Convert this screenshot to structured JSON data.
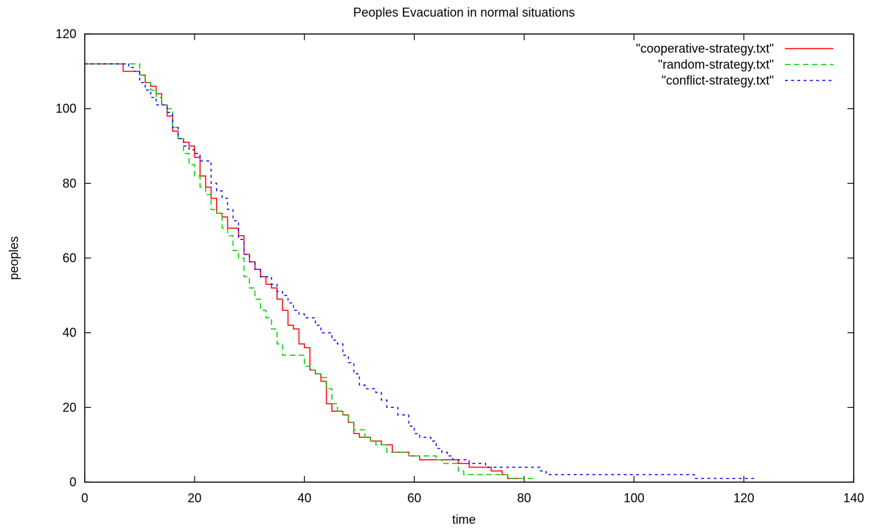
{
  "chart_data": {
    "type": "line",
    "title": "Peoples Evacuation in normal situations",
    "xlabel": "time",
    "ylabel": "peoples",
    "xlim": [
      0,
      140
    ],
    "ylim": [
      0,
      120
    ],
    "xticks": [
      0,
      20,
      40,
      60,
      80,
      100,
      120,
      140
    ],
    "yticks": [
      0,
      20,
      40,
      60,
      80,
      100,
      120
    ],
    "legend_position": "top-right",
    "step": true,
    "series": [
      {
        "name": "\"cooperative-strategy.txt\"",
        "color": "#ff0000",
        "dash": "solid",
        "points": [
          [
            0,
            112
          ],
          [
            6,
            112
          ],
          [
            7,
            110
          ],
          [
            9,
            110
          ],
          [
            10,
            109
          ],
          [
            11,
            107
          ],
          [
            12,
            106
          ],
          [
            13,
            104
          ],
          [
            14,
            101
          ],
          [
            15,
            98
          ],
          [
            16,
            94
          ],
          [
            17,
            92
          ],
          [
            18,
            91
          ],
          [
            19,
            90
          ],
          [
            20,
            87
          ],
          [
            21,
            82
          ],
          [
            22,
            79
          ],
          [
            23,
            76
          ],
          [
            24,
            72
          ],
          [
            25,
            71
          ],
          [
            26,
            68
          ],
          [
            27,
            68
          ],
          [
            28,
            66
          ],
          [
            29,
            61
          ],
          [
            30,
            59
          ],
          [
            31,
            57
          ],
          [
            32,
            55
          ],
          [
            33,
            53
          ],
          [
            34,
            52
          ],
          [
            35,
            49
          ],
          [
            36,
            46
          ],
          [
            37,
            42
          ],
          [
            38,
            41
          ],
          [
            39,
            37
          ],
          [
            40,
            36
          ],
          [
            41,
            30
          ],
          [
            42,
            29
          ],
          [
            43,
            27
          ],
          [
            44,
            21
          ],
          [
            45,
            19
          ],
          [
            46,
            19
          ],
          [
            47,
            18
          ],
          [
            48,
            16
          ],
          [
            49,
            13
          ],
          [
            50,
            12
          ],
          [
            51,
            12
          ],
          [
            52,
            11
          ],
          [
            53,
            11
          ],
          [
            54,
            10
          ],
          [
            55,
            10
          ],
          [
            56,
            8
          ],
          [
            58,
            8
          ],
          [
            59,
            7
          ],
          [
            60,
            7
          ],
          [
            61,
            6
          ],
          [
            67,
            6
          ],
          [
            68,
            5
          ],
          [
            69,
            5
          ],
          [
            70,
            4
          ],
          [
            73,
            4
          ],
          [
            74,
            3
          ],
          [
            75,
            3
          ],
          [
            76,
            2
          ],
          [
            77,
            1
          ],
          [
            79,
            1
          ]
        ]
      },
      {
        "name": "\"random-strategy.txt\"",
        "color": "#00cc00",
        "dash": "dashed",
        "points": [
          [
            0,
            112
          ],
          [
            9,
            112
          ],
          [
            10,
            109
          ],
          [
            11,
            107
          ],
          [
            12,
            105
          ],
          [
            13,
            103
          ],
          [
            14,
            101
          ],
          [
            15,
            100
          ],
          [
            16,
            95
          ],
          [
            17,
            92
          ],
          [
            18,
            88
          ],
          [
            19,
            85
          ],
          [
            20,
            82
          ],
          [
            21,
            79
          ],
          [
            22,
            77
          ],
          [
            23,
            73
          ],
          [
            24,
            72
          ],
          [
            25,
            68
          ],
          [
            26,
            66
          ],
          [
            27,
            62
          ],
          [
            28,
            60
          ],
          [
            29,
            55
          ],
          [
            30,
            52
          ],
          [
            31,
            49
          ],
          [
            32,
            46
          ],
          [
            33,
            44
          ],
          [
            34,
            41
          ],
          [
            35,
            37
          ],
          [
            36,
            34
          ],
          [
            38,
            34
          ],
          [
            39,
            34
          ],
          [
            40,
            31
          ],
          [
            41,
            30
          ],
          [
            42,
            29
          ],
          [
            43,
            28
          ],
          [
            44,
            25
          ],
          [
            45,
            21
          ],
          [
            46,
            19
          ],
          [
            47,
            18
          ],
          [
            48,
            16
          ],
          [
            49,
            14
          ],
          [
            50,
            14
          ],
          [
            51,
            12
          ],
          [
            52,
            11
          ],
          [
            53,
            10
          ],
          [
            54,
            10
          ],
          [
            55,
            8
          ],
          [
            59,
            7
          ],
          [
            64,
            6
          ],
          [
            65,
            5
          ],
          [
            67,
            5
          ],
          [
            68,
            3
          ],
          [
            69,
            2
          ],
          [
            76,
            2
          ],
          [
            77,
            1
          ],
          [
            82,
            1
          ]
        ]
      },
      {
        "name": "\"conflict-strategy.txt\"",
        "color": "#0000ff",
        "dash": "dotted",
        "points": [
          [
            0,
            112
          ],
          [
            7,
            112
          ],
          [
            8,
            111
          ],
          [
            9,
            110
          ],
          [
            10,
            107
          ],
          [
            11,
            105
          ],
          [
            12,
            103
          ],
          [
            13,
            101
          ],
          [
            15,
            99
          ],
          [
            16,
            95
          ],
          [
            17,
            92
          ],
          [
            18,
            90
          ],
          [
            19,
            89
          ],
          [
            20,
            88
          ],
          [
            21,
            86
          ],
          [
            23,
            80
          ],
          [
            24,
            78
          ],
          [
            25,
            76
          ],
          [
            26,
            73
          ],
          [
            27,
            70
          ],
          [
            28,
            65
          ],
          [
            29,
            61
          ],
          [
            30,
            59
          ],
          [
            31,
            57
          ],
          [
            32,
            55
          ],
          [
            34,
            53
          ],
          [
            35,
            51
          ],
          [
            36,
            50
          ],
          [
            37,
            48
          ],
          [
            38,
            46
          ],
          [
            39,
            45
          ],
          [
            40,
            44
          ],
          [
            41,
            44
          ],
          [
            42,
            42
          ],
          [
            43,
            40
          ],
          [
            45,
            38
          ],
          [
            46,
            37
          ],
          [
            47,
            34
          ],
          [
            48,
            32
          ],
          [
            49,
            29
          ],
          [
            50,
            26
          ],
          [
            51,
            25
          ],
          [
            52,
            25
          ],
          [
            53,
            24
          ],
          [
            54,
            22
          ],
          [
            55,
            20
          ],
          [
            56,
            20
          ],
          [
            57,
            18
          ],
          [
            58,
            18
          ],
          [
            59,
            15
          ],
          [
            60,
            13
          ],
          [
            61,
            12
          ],
          [
            62,
            12
          ],
          [
            63,
            11
          ],
          [
            64,
            9
          ],
          [
            65,
            8
          ],
          [
            66,
            7
          ],
          [
            67,
            6
          ],
          [
            68,
            6
          ],
          [
            69,
            6
          ],
          [
            70,
            5
          ],
          [
            72,
            5
          ],
          [
            73,
            4
          ],
          [
            77,
            4
          ],
          [
            82,
            4
          ],
          [
            83,
            3
          ],
          [
            84,
            2
          ],
          [
            110,
            2
          ],
          [
            111,
            1
          ],
          [
            118,
            1
          ],
          [
            122,
            1
          ]
        ]
      }
    ]
  }
}
